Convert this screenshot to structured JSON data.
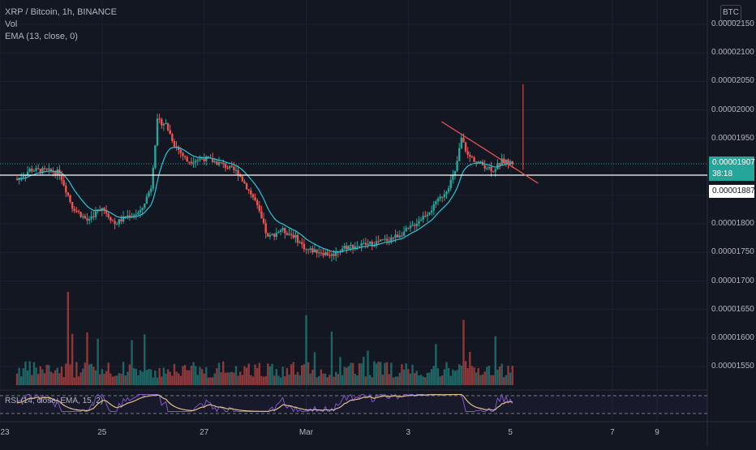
{
  "chart_data": {
    "type": "candlestick",
    "title": "XRP / Bitcoin, 1h, BINANCE",
    "indicators": [
      "Vol",
      "EMA (13, close, 0)"
    ],
    "rsi_label": "RSI (14, close, EMA, 15, 2)",
    "currency_badge": "BTC",
    "ylim": [
      1.51e-05,
      2.17e-06
    ],
    "y_ticks": [
      "0.00002150",
      "0.00002100",
      "0.00002050",
      "0.00002000",
      "0.00001950",
      "0.00001850",
      "0.00001800",
      "0.00001750",
      "0.00001700",
      "0.00001650",
      "0.00001600",
      "0.00001550"
    ],
    "y_tick_values": [
      2.15e-05,
      2.1e-05,
      2.05e-05,
      2e-05,
      1.95e-05,
      1.85e-05,
      1.8e-05,
      1.75e-05,
      1.7e-05,
      1.65e-05,
      1.6e-05,
      1.55e-05
    ],
    "x_ticks": [
      "23",
      "25",
      "27",
      "Mar",
      "3",
      "5",
      "7",
      "9"
    ],
    "current_price": "0.00001907",
    "countdown": "38:18",
    "horizontal_level": "0.00001887",
    "price_path": [
      {
        "t": 0,
        "p": 1.878e-05
      },
      {
        "t": 6,
        "p": 1.895e-05
      },
      {
        "t": 14,
        "p": 1.893e-05
      },
      {
        "t": 20,
        "p": 1.89e-05
      },
      {
        "t": 26,
        "p": 1.83e-05
      },
      {
        "t": 33,
        "p": 1.806e-05
      },
      {
        "t": 40,
        "p": 1.83e-05
      },
      {
        "t": 46,
        "p": 1.8e-05
      },
      {
        "t": 52,
        "p": 1.814e-05
      },
      {
        "t": 58,
        "p": 1.82e-05
      },
      {
        "t": 63,
        "p": 1.865e-05
      },
      {
        "t": 66,
        "p": 1.98e-05
      },
      {
        "t": 70,
        "p": 1.975e-05
      },
      {
        "t": 74,
        "p": 1.94e-05
      },
      {
        "t": 80,
        "p": 1.91e-05
      },
      {
        "t": 88,
        "p": 1.915e-05
      },
      {
        "t": 96,
        "p": 1.905e-05
      },
      {
        "t": 104,
        "p": 1.89e-05
      },
      {
        "t": 112,
        "p": 1.84e-05
      },
      {
        "t": 118,
        "p": 1.775e-05
      },
      {
        "t": 124,
        "p": 1.79e-05
      },
      {
        "t": 130,
        "p": 1.78e-05
      },
      {
        "t": 136,
        "p": 1.755e-05
      },
      {
        "t": 142,
        "p": 1.752e-05
      },
      {
        "t": 148,
        "p": 1.745e-05
      },
      {
        "t": 154,
        "p": 1.76e-05
      },
      {
        "t": 160,
        "p": 1.762e-05
      },
      {
        "t": 166,
        "p": 1.765e-05
      },
      {
        "t": 172,
        "p": 1.77e-05
      },
      {
        "t": 178,
        "p": 1.778e-05
      },
      {
        "t": 184,
        "p": 1.79e-05
      },
      {
        "t": 190,
        "p": 1.81e-05
      },
      {
        "t": 196,
        "p": 1.83e-05
      },
      {
        "t": 202,
        "p": 1.86e-05
      },
      {
        "t": 206,
        "p": 1.89e-05
      },
      {
        "t": 209,
        "p": 1.95e-05
      },
      {
        "t": 212,
        "p": 1.92e-05
      },
      {
        "t": 218,
        "p": 1.905e-05
      },
      {
        "t": 224,
        "p": 1.895e-05
      },
      {
        "t": 228,
        "p": 1.91e-05
      },
      {
        "t": 233,
        "p": 1.907e-05
      }
    ],
    "time_range": [
      -8,
      301
    ],
    "x_tick_times": [
      -8,
      40,
      88,
      136,
      184,
      232,
      280,
      301
    ],
    "trendline": {
      "t0": 205,
      "p0": 1.975e-05,
      "t1": 242,
      "p1": 1.865e-05
    },
    "volume_spikes": [
      {
        "t": 24,
        "v": 1.0
      },
      {
        "t": 26,
        "v": 0.55
      },
      {
        "t": 136,
        "v": 0.75
      },
      {
        "t": 148,
        "v": 0.6
      },
      {
        "t": 210,
        "v": 0.7
      }
    ],
    "colors": {
      "up": "#26a69a",
      "down": "#ef5350",
      "ema": "#26c6da",
      "rsi": "#e0c08a",
      "rsi_ema": "#7e57c2",
      "level": "#ffffff",
      "trend": "#ef5350",
      "grid": "#1e2230"
    }
  }
}
